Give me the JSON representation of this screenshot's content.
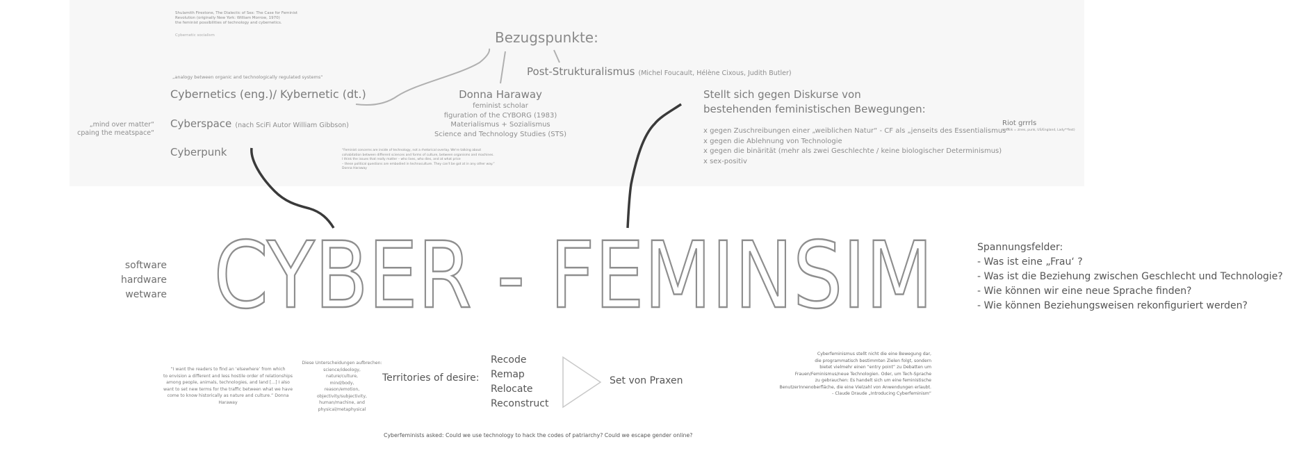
{
  "top": {
    "citation": [
      "Shulamith Firestone, The Dialectic of Sex: The Case for Feminist",
      "Revolution (originally New York: William Morrow, 1970)",
      "the feminist possibilities of technology and cybernetics."
    ],
    "cybernetic_socialism": "Cybernetic socialism",
    "bezugspunkte": "Bezugspunkte:",
    "post_strukturalismus": "Post-Strukturalismus",
    "post_strukturalismus_names": "(Michel Foucault, Hélène Cixous, Judith Butler)",
    "analogy": "„analogy between organic and technologically regulated systems“",
    "cybernetics": "Cybernetics (eng.)/ Kybernetic (dt.)",
    "cyberspace": "Cyberspace",
    "cyberspace_note": "(nach SciFi Autor William Gibbson)",
    "cyberpunk": "Cyberpunk",
    "mind_over_matter": [
      "„mind over matter“",
      "cpaing the meatspace“"
    ],
    "haraway": {
      "name": "Donna Haraway",
      "lines": [
        "feminist scholar",
        "figuration of the CYBORG (1983)",
        "Materialismus + Sozialismus",
        "Science and Technology Studies (STS)"
      ]
    },
    "haraway_quote": [
      "“Feminist concerns are inside of technology, not a rhetorical overlay. We're talking about",
      "cohabitation between different sciences and forms of culture, between organisms and machines.",
      "I think the issues that really matter – who lives, who dies, and at what price",
      "– these political questions are embodied in technoculture. They can't be got at in any other way.”",
      "Donna Haraway"
    ],
    "stellt": [
      "Stellt sich gegen Diskurse von",
      "bestehenden feministischen Bewegungen:"
    ],
    "gegen_list": [
      "x gegen Zuschreibungen einer „weiblichen Natur“ - CF als „jenseits des Essentialismus“",
      "x gegen die Ablehnung von Technologie",
      "x gegen die binärität (mehr als zwei Geschlechte / keine biologischer Determinismus)",
      "x sex-positiv"
    ],
    "riot": "Riot grrrls",
    "riot_note": "(musik = zines, punk, US/England, Lady**fest)"
  },
  "middle": {
    "ware": [
      "software",
      "hardware",
      "wetware"
    ],
    "main_title": "CYBER - FEMINSIM",
    "spannung_title": "Spannungsfelder:",
    "spannung": [
      "- Was ist eine „Frau‘ ?",
      "- Was ist die Beziehung zwischen Geschlecht und Technologie?",
      "- Wie können wir eine neue Sprache finden?",
      "- Wie können Beziehungsweisen rekonfiguriert werden?"
    ]
  },
  "bottom": {
    "quote": [
      "“I want the readers to find an ‘elsewhere’ from which",
      "to envision a different and less hostile order of relationships",
      "among people, animals, technologies, and land [...] I also",
      "want to set new terms for the traffic between what we have",
      "come to know historically as nature and culture.” Donna Haraway"
    ],
    "unterscheidungen": [
      "Diese Unterscheidungen aufbrechen:",
      "science/ideology,",
      "nature/culture,",
      "mind/body,",
      "reason/emotion,",
      "objectivity/subjectivity,",
      "human/machine, and",
      "physical/metaphysical"
    ],
    "territories": "Territories of desire:",
    "recode": [
      "Recode",
      "Remap",
      "Relocate",
      "Reconstruct"
    ],
    "praxen": "Set von Praxen",
    "cf_text": [
      "Cyberfeminismus stellt nicht die eine Bewegung dar,",
      "die programmatisch bestimmten Zielen folgt, sondern",
      "bietet vielmehr einen “entry point” zu Debatten um",
      "Frauen/Feminismus/neue Technologien. Oder, um Tech-Sprache",
      "zu gebrauchen: Es handelt sich um eine feministische",
      "BenutzerInnenoberfläche, die eine Vielzahl von Anwendungen erlaubt.",
      "- Claude Draude „Introducing Cyberfeminism“"
    ],
    "asked": "Cyberfeminists asked: Could we use technology to hack the codes of patriarchy? Could we escape gender online?"
  }
}
